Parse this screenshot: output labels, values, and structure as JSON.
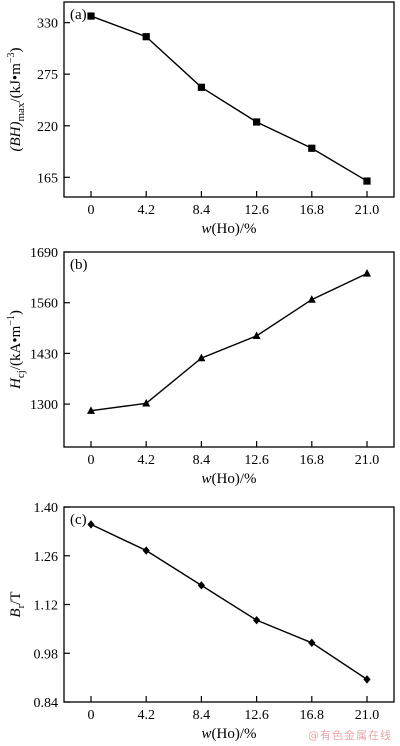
{
  "watermark": "@有色金属在线",
  "chart_data": [
    {
      "type": "line",
      "panel_label": "(a)",
      "x": [
        "0",
        "4.2",
        "8.4",
        "12.6",
        "16.8",
        "21.0"
      ],
      "y": [
        337,
        315,
        261,
        224,
        196,
        161
      ],
      "yticks": [
        "165",
        "220",
        "275",
        "330"
      ],
      "ylim": [
        144,
        352
      ],
      "xlabel": "w(Ho)/%",
      "ylabel": "(BH)max/(kJ·m⁻³)",
      "ylabel_parts": {
        "main": "(BH)",
        "sub": "max",
        "units": "/(kJ•m",
        "sup": "−3",
        "close": ")"
      },
      "xlabel_parts": {
        "var": "w",
        "rest": "(Ho)/%"
      },
      "marker": "square",
      "grid": false
    },
    {
      "type": "line",
      "panel_label": "(b)",
      "x": [
        "0",
        "4.2",
        "8.4",
        "12.6",
        "16.8",
        "21.0"
      ],
      "y": [
        1283,
        1302,
        1418,
        1475,
        1568,
        1635
      ],
      "yticks": [
        "1300",
        "1430",
        "1560",
        "1690"
      ],
      "ylim": [
        1190,
        1690
      ],
      "xlabel": "w(Ho)/%",
      "ylabel": "Hcj/(kA·m⁻¹)",
      "ylabel_parts": {
        "main": "H",
        "sub": "cj",
        "units": "/(kA•m",
        "sup": "−1",
        "close": ")"
      },
      "xlabel_parts": {
        "var": "w",
        "rest": "(Ho)/%"
      },
      "marker": "triangle",
      "grid": false
    },
    {
      "type": "line",
      "panel_label": "(c)",
      "x": [
        "0",
        "4.2",
        "8.4",
        "12.6",
        "16.8",
        "21.0"
      ],
      "y": [
        1.35,
        1.275,
        1.175,
        1.075,
        1.01,
        0.905
      ],
      "yticks": [
        "0.84",
        "0.98",
        "1.12",
        "1.26",
        "1.40"
      ],
      "ylim": [
        0.84,
        1.4
      ],
      "xlabel": "w(Ho)/%",
      "ylabel": "Br/T",
      "ylabel_parts": {
        "main": "B",
        "sub": "r",
        "units": "/T",
        "sup": "",
        "close": ""
      },
      "xlabel_parts": {
        "var": "w",
        "rest": "(Ho)/%"
      },
      "marker": "diamond",
      "grid": false
    }
  ]
}
